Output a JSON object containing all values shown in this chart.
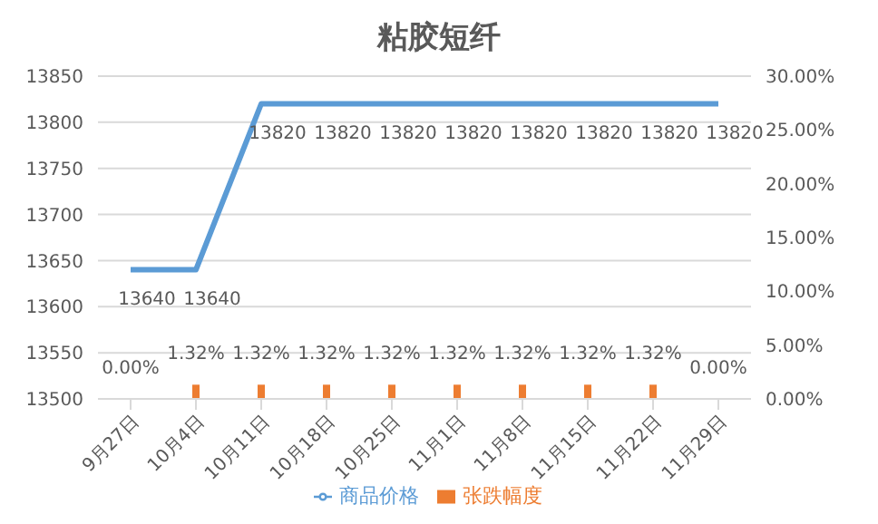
{
  "chart_data": {
    "type": "bar",
    "title": "粘胶短纤",
    "categories": [
      "9月27日",
      "10月4日",
      "10月11日",
      "10月18日",
      "10月25日",
      "11月1日",
      "11月8日",
      "11月15日",
      "11月22日",
      "11月29日"
    ],
    "series": [
      {
        "name": "张跌幅度",
        "axis": "y2",
        "color": "#ed7d31",
        "values": [
          0,
          1.32,
          1.32,
          1.32,
          1.32,
          1.32,
          1.32,
          1.32,
          1.32,
          0
        ],
        "value_labels": [
          "0.00%",
          "1.32%",
          "1.32%",
          "1.32%",
          "1.32%",
          "1.32%",
          "1.32%",
          "1.32%",
          "1.32%",
          "0.00%"
        ]
      },
      {
        "name": "商品价格",
        "type": "line",
        "color": "#5b9bd5",
        "values": [
          13640,
          13640,
          13820,
          13820,
          13820,
          13820,
          13820,
          13820,
          13820,
          13820
        ],
        "value_labels": [
          "13640",
          "13640",
          "13820",
          "13820",
          "13820",
          "13820",
          "13820",
          "13820",
          "13820",
          "13820"
        ]
      }
    ],
    "ylim": [
      13500,
      13850
    ],
    "yticks": [
      13500,
      13550,
      13600,
      13650,
      13700,
      13750,
      13800,
      13850
    ],
    "y2lim": [
      0,
      30
    ],
    "y2ticks": [
      {
        "value": 0,
        "label": "0.00%"
      },
      {
        "value": 5,
        "label": "5.00%"
      },
      {
        "value": 10,
        "label": "10.00%"
      },
      {
        "value": 15,
        "label": "15.00%"
      },
      {
        "value": 20,
        "label": "20.00%"
      },
      {
        "value": 25,
        "label": "25.00%"
      },
      {
        "value": 30,
        "label": "30.00%"
      }
    ],
    "grid": "y",
    "legend": "bottom",
    "marker": "none"
  }
}
